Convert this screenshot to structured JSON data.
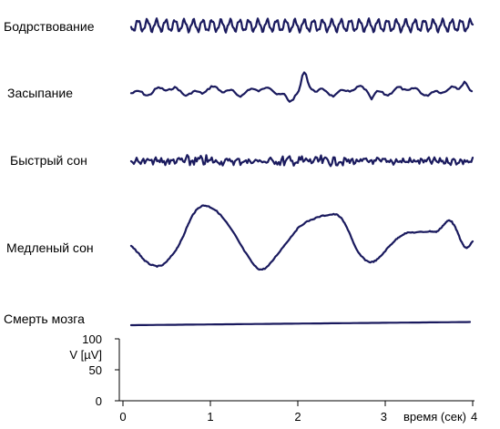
{
  "chart_data": {
    "type": "line",
    "title": "",
    "series": [
      {
        "name": "Бодрствование",
        "amplitude": "high-frequency, low amplitude"
      },
      {
        "name": "Засыпание"
      },
      {
        "name": "Быстрый сон"
      },
      {
        "name": "Медленый сон"
      },
      {
        "name": "Смерть мозга"
      }
    ],
    "x_axis": {
      "label": "время (сек)",
      "ticks": [
        "0",
        "1",
        "2",
        "3",
        "4"
      ],
      "range": [
        0,
        4
      ]
    },
    "y_axis": {
      "label": "V [µV]",
      "ticks": [
        "0",
        "50",
        "100"
      ],
      "range": [
        0,
        100
      ]
    },
    "trace_color": "#1a1a5e",
    "grid": false
  }
}
